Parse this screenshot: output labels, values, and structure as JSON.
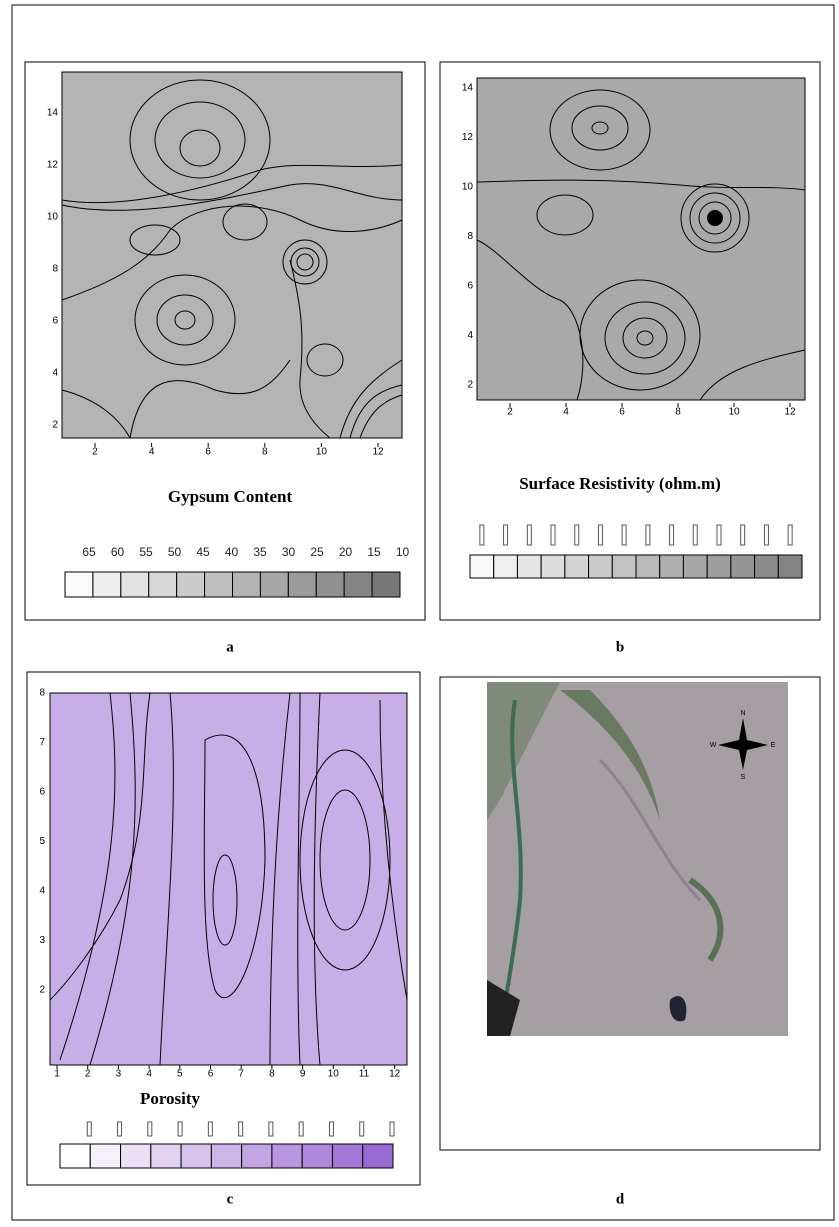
{
  "panels": [
    {
      "label": "a",
      "title": "Gypsum Content",
      "xticks": [
        2,
        4,
        6,
        8,
        10,
        12
      ],
      "yticks": [
        2,
        4,
        6,
        8,
        10,
        12,
        14
      ],
      "legend": [
        65,
        60,
        55,
        50,
        45,
        40,
        35,
        30,
        25,
        20,
        15,
        10
      ]
    },
    {
      "label": "b",
      "title": "Surface Resistivity (ohm.m)",
      "xticks": [
        2,
        4,
        6,
        8,
        10,
        12
      ],
      "yticks": [
        2,
        4,
        6,
        8,
        10,
        12,
        14
      ]
    },
    {
      "label": "c",
      "title": "Porosity",
      "xticks": [
        1,
        2,
        3,
        4,
        5,
        6,
        7,
        8,
        9,
        10,
        11,
        12
      ],
      "yticks": [
        2,
        3,
        4,
        5,
        6,
        7,
        8
      ]
    },
    {
      "label": "d",
      "compass": [
        "N",
        "E",
        "S",
        "W"
      ]
    }
  ]
}
